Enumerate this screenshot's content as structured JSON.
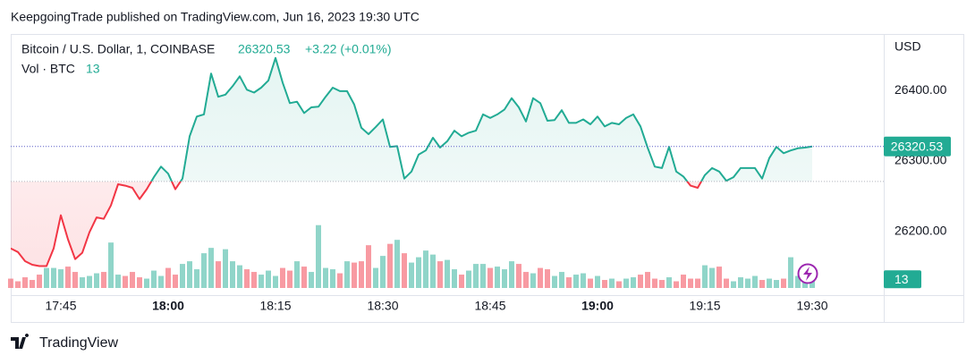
{
  "header": "KeepgoingTrade published on TradingView.com, Jun 16, 2023 19:30 UTC",
  "footer": "TradingView",
  "chart_data": {
    "type": "line",
    "title": "Bitcoin / U.S. Dollar, 1, COINBASE",
    "change": "+3.22 (+0.01%)",
    "currency": "USD",
    "up_color": "#22ab94",
    "down_color": "#f23645",
    "baseline": 26271,
    "x": [
      1058,
      1059,
      1060,
      1061,
      1062,
      1063,
      1064,
      1065,
      1066,
      1067,
      1068,
      1069,
      1070,
      1071,
      1072,
      1073,
      1074,
      1075,
      1076,
      1077,
      1078,
      1079,
      1080,
      1081,
      1082,
      1083,
      1084,
      1085,
      1086,
      1087,
      1088,
      1089,
      1090,
      1091,
      1092,
      1093,
      1094,
      1095,
      1096,
      1097,
      1098,
      1099,
      1100,
      1101,
      1102,
      1103,
      1104,
      1105,
      1106,
      1107,
      1108,
      1109,
      1110,
      1111,
      1112,
      1113,
      1114,
      1115,
      1116,
      1117,
      1118,
      1119,
      1120,
      1121,
      1122,
      1123,
      1124,
      1125,
      1126,
      1127,
      1128,
      1129,
      1130,
      1131,
      1132,
      1133,
      1134,
      1135,
      1136,
      1137,
      1138,
      1139,
      1140,
      1141,
      1142,
      1143,
      1144,
      1145,
      1146,
      1147,
      1148,
      1149,
      1150,
      1151,
      1152,
      1153,
      1154,
      1155,
      1156,
      1157,
      1158,
      1159,
      1160,
      1161,
      1162,
      1163,
      1164,
      1165,
      1166,
      1167,
      1168,
      1169,
      1170
    ],
    "values": [
      26176,
      26171,
      26158,
      26153,
      26151,
      26151,
      26176,
      26223,
      26189,
      26161,
      26170,
      26199,
      26220,
      26218,
      26237,
      26267,
      26265,
      26262,
      26246,
      26260,
      26277,
      26292,
      26282,
      26260,
      26275,
      26335,
      26363,
      26366,
      26424,
      26391,
      26394,
      26406,
      26420,
      26401,
      26397,
      26404,
      26414,
      26446,
      26411,
      26382,
      26384,
      26368,
      26376,
      26377,
      26391,
      26404,
      26399,
      26399,
      26380,
      26347,
      26338,
      26348,
      26359,
      26320,
      26321,
      26275,
      26285,
      26309,
      26315,
      26333,
      26319,
      26328,
      26343,
      26335,
      26340,
      26343,
      26366,
      26361,
      26366,
      26373,
      26389,
      26376,
      26356,
      26389,
      26382,
      26357,
      26358,
      26372,
      26354,
      26354,
      26359,
      26352,
      26363,
      26349,
      26354,
      26352,
      26361,
      26366,
      26349,
      26319,
      26292,
      26290,
      26320,
      26285,
      26278,
      26265,
      26262,
      26280,
      26290,
      26285,
      26272,
      26277,
      26290,
      26290,
      26290,
      26275,
      26304,
      26320,
      26311,
      26315,
      26318,
      26319,
      26320.53
    ],
    "volume": {
      "name": "Vol · BTC",
      "ylim": [
        0,
        380
      ],
      "values": [
        14,
        10,
        16,
        12,
        20,
        30,
        30,
        28,
        32,
        24,
        16,
        18,
        22,
        24,
        68,
        20,
        18,
        24,
        16,
        14,
        26,
        18,
        30,
        20,
        36,
        40,
        28,
        52,
        60,
        40,
        58,
        40,
        34,
        28,
        24,
        20,
        26,
        18,
        30,
        26,
        40,
        32,
        24,
        94,
        30,
        28,
        22,
        40,
        38,
        40,
        64,
        30,
        48,
        66,
        72,
        52,
        38,
        46,
        56,
        50,
        40,
        42,
        28,
        20,
        26,
        36,
        36,
        30,
        32,
        28,
        40,
        36,
        24,
        22,
        30,
        28,
        18,
        24,
        16,
        20,
        22,
        14,
        18,
        12,
        14,
        10,
        14,
        16,
        20,
        24,
        14,
        12,
        16,
        10,
        20,
        14,
        14,
        34,
        30,
        32,
        14,
        10,
        16,
        14,
        18,
        12,
        14,
        12,
        14,
        46,
        18,
        16,
        13
      ]
    },
    "xlim": [
      1058,
      1180
    ],
    "xticks": [
      {
        "value": 1065,
        "label": "17:45"
      },
      {
        "value": 1080,
        "label": "18:00"
      },
      {
        "value": 1095,
        "label": "18:15"
      },
      {
        "value": 1110,
        "label": "18:30"
      },
      {
        "value": 1125,
        "label": "18:45"
      },
      {
        "value": 1140,
        "label": "19:00"
      },
      {
        "value": 1155,
        "label": "19:15"
      },
      {
        "value": 1170,
        "label": "19:30"
      }
    ],
    "ylim": [
      26120,
      26480
    ],
    "yticks": [
      {
        "value": 26200,
        "label": "26200.00"
      },
      {
        "value": 26300,
        "label": "26300.00"
      },
      {
        "value": 26400,
        "label": "26400.00"
      }
    ],
    "grid": false
  }
}
